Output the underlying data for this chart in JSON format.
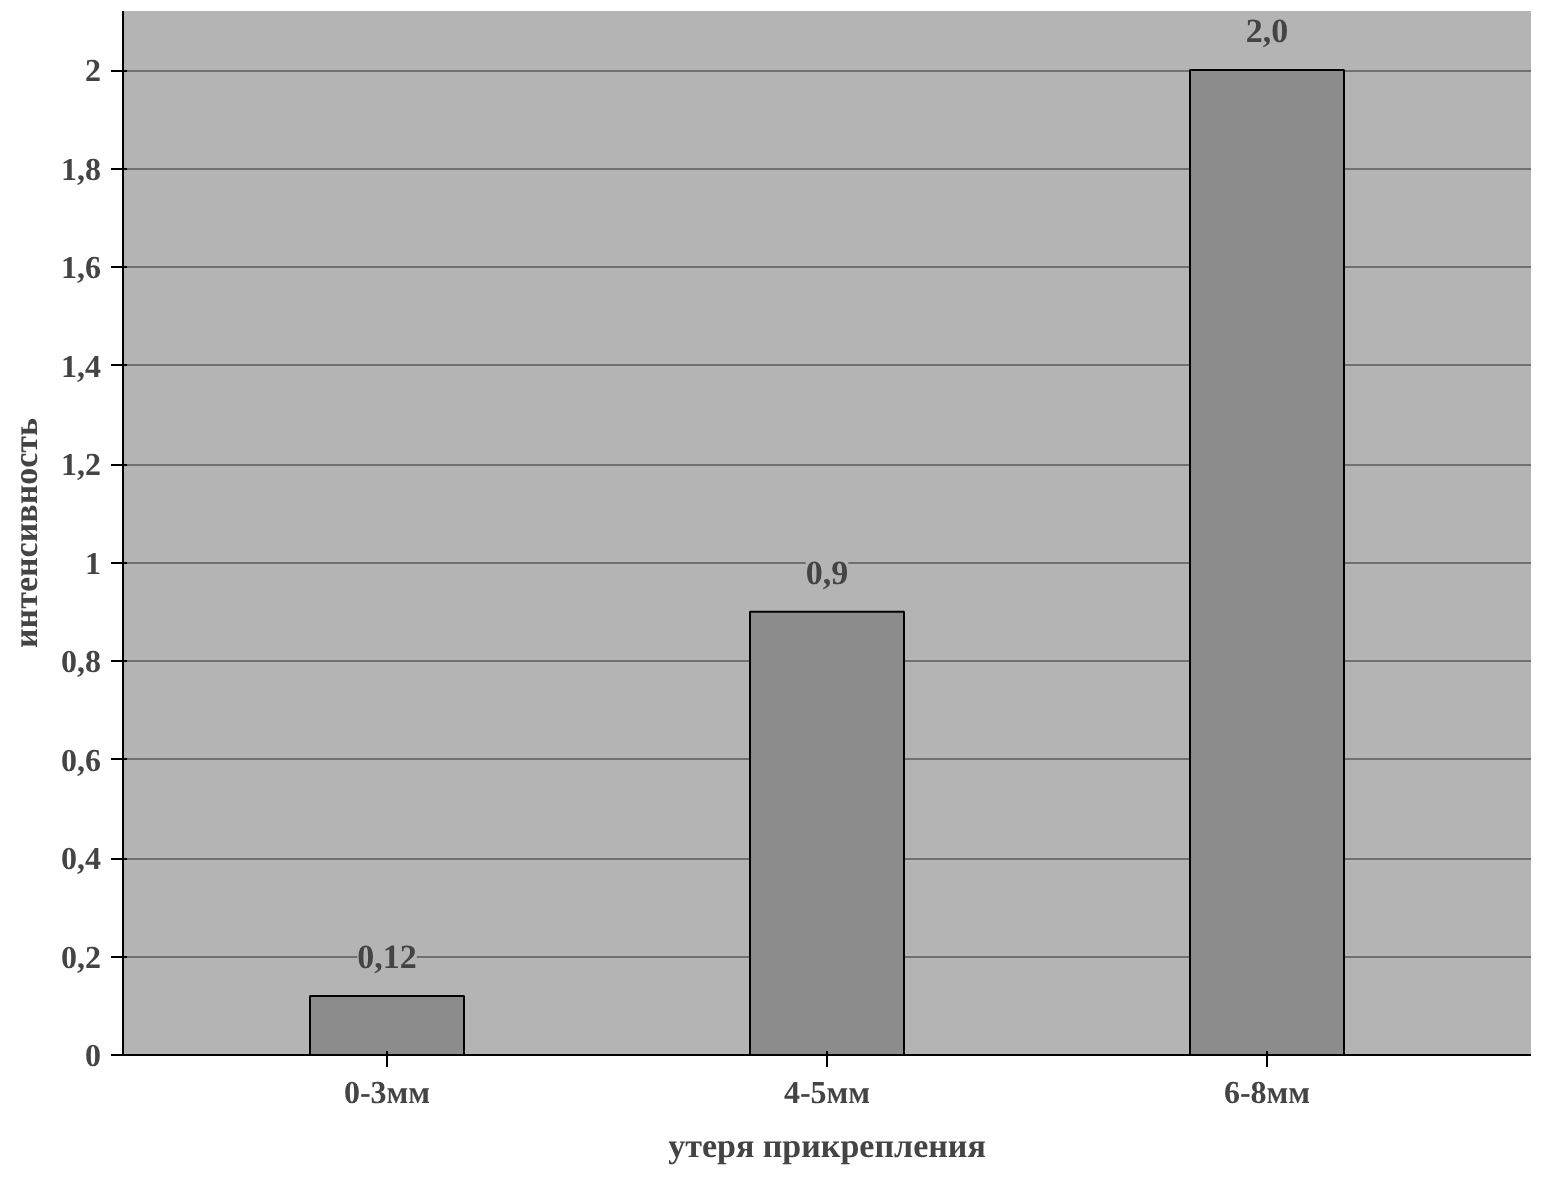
{
  "chart_data": {
    "type": "bar",
    "xlabel": "утеря прикрепления",
    "ylabel": "интенсивность",
    "categories": [
      "0-3мм",
      "4-5мм",
      "6-8мм"
    ],
    "values": [
      0.12,
      0.9,
      2.0
    ],
    "color": "#8c8c8c",
    "value_labels": [
      "0,12",
      "0,9",
      "2,0"
    ],
    "ylim": [
      0,
      2
    ],
    "yticks": [
      0,
      {
        "value": 0.2,
        "label": "0,2"
      },
      {
        "value": 0.4,
        "label": "0,4"
      },
      {
        "value": 0.6,
        "label": "0,6"
      },
      {
        "value": 0.8,
        "label": "0,8"
      },
      1,
      {
        "value": 1.2,
        "label": "1,2"
      },
      {
        "value": 1.4,
        "label": "1,4"
      },
      {
        "value": 1.6,
        "label": "1,6"
      },
      {
        "value": 1.8,
        "label": "1,8"
      },
      2
    ],
    "grid": "y"
  }
}
